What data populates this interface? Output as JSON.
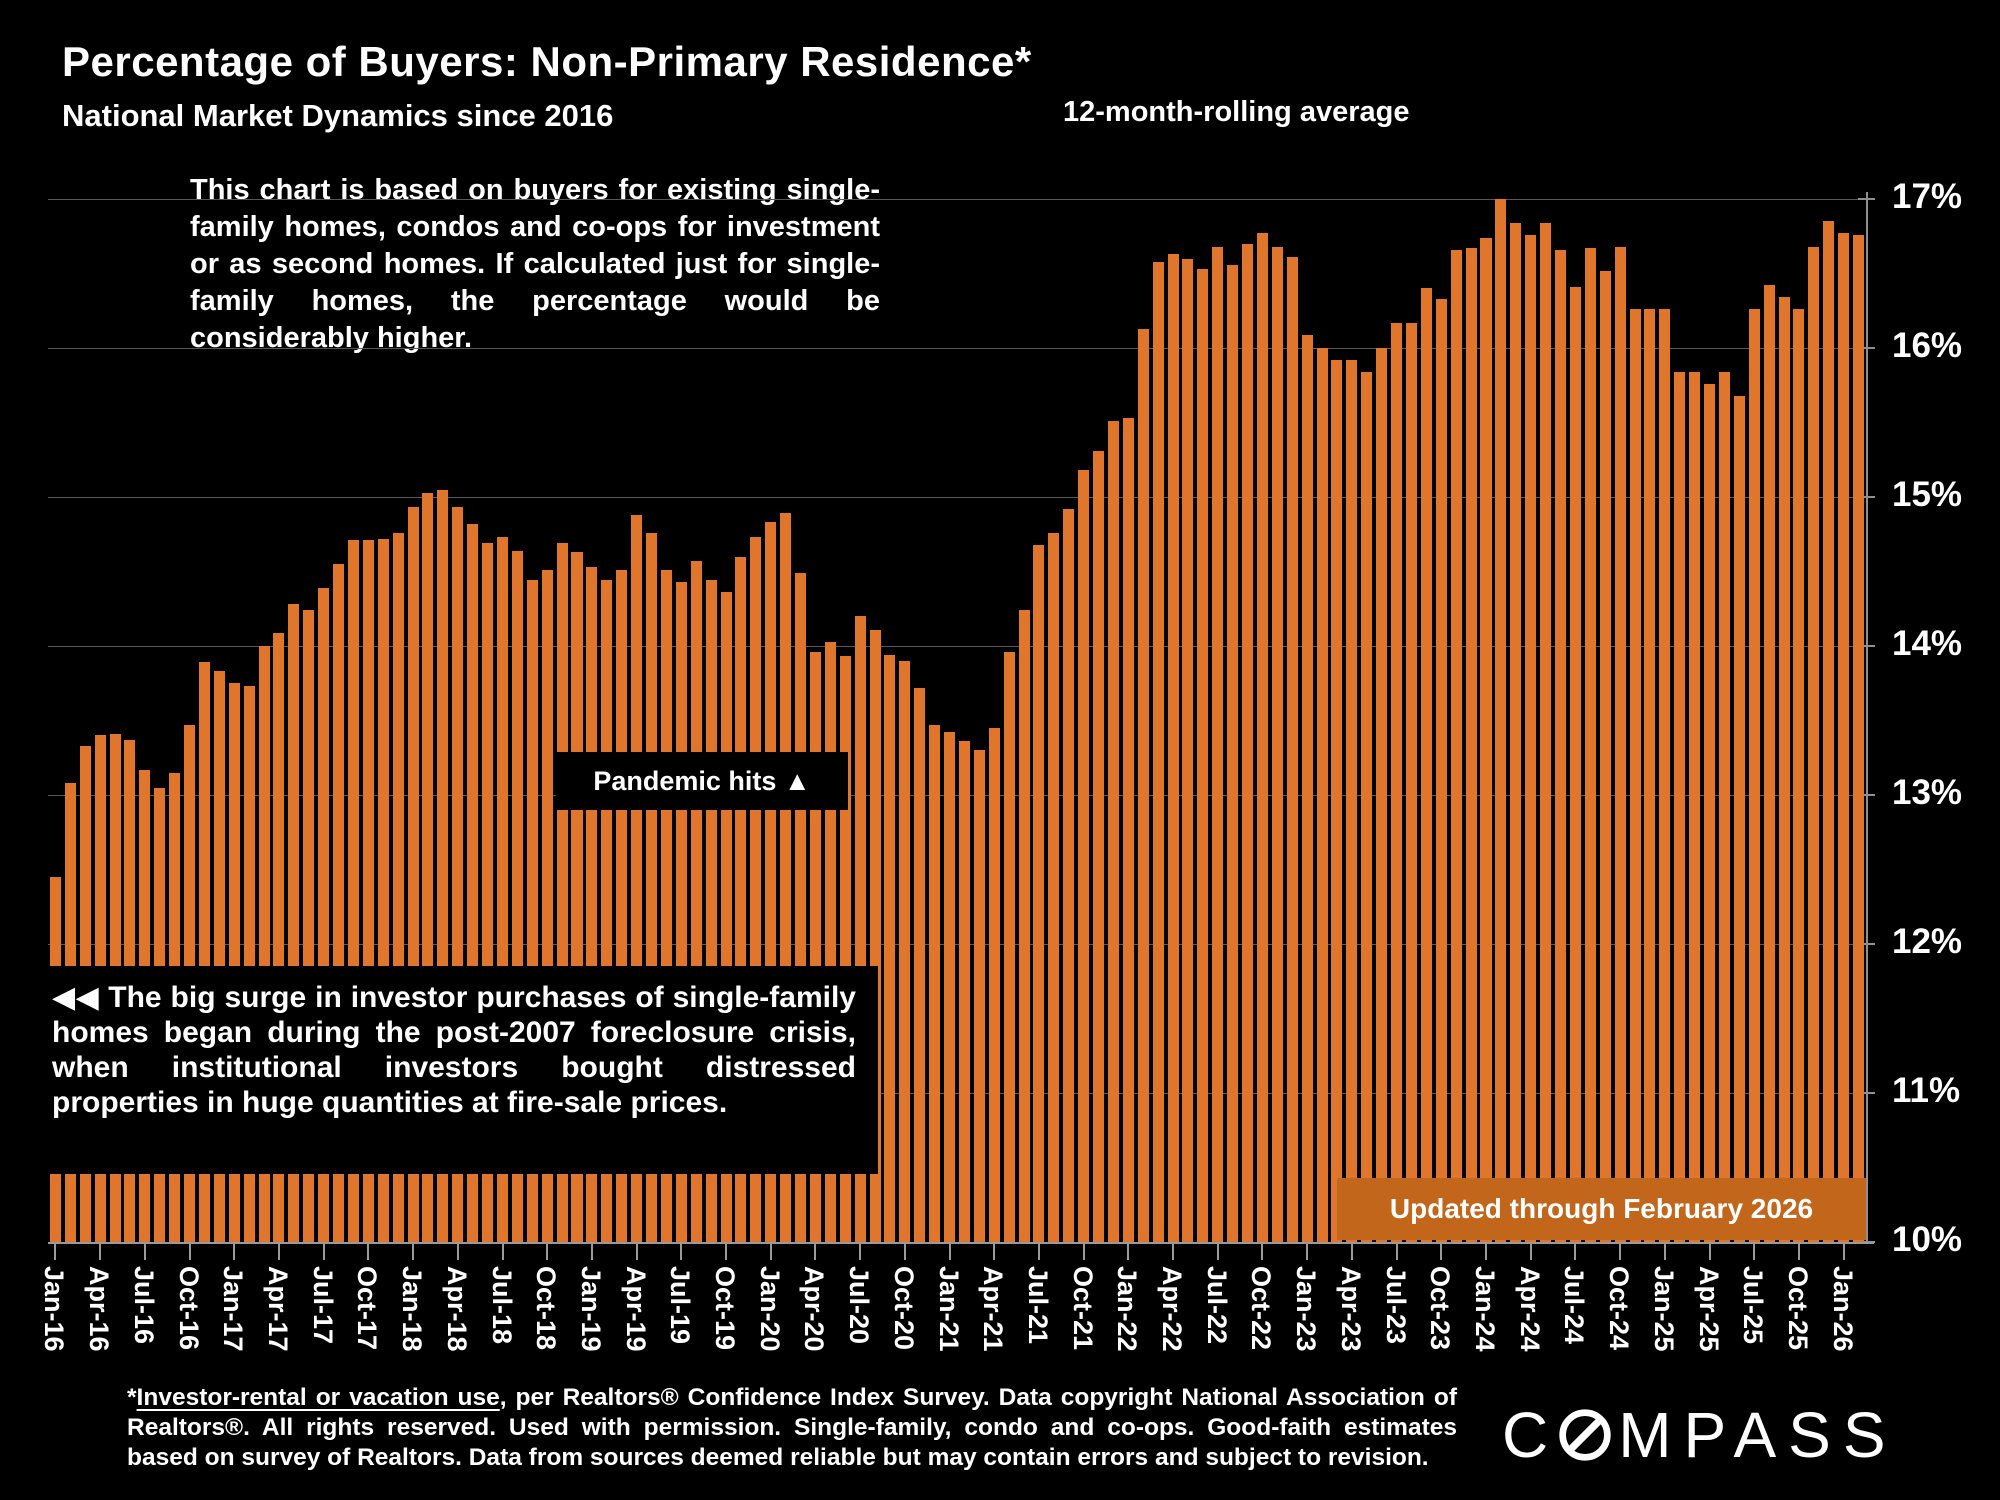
{
  "header": {
    "title": "Percentage of Buyers: Non-Primary Residence*",
    "subtitle": "National Market Dynamics since 2016",
    "rolling_label": "12-month-rolling average"
  },
  "annotations": {
    "methodology": "This chart is based on buyers for existing single-family homes, condos and co-ops for investment or as second homes. If calculated just for single-family homes, the percentage would be considerably higher.",
    "pandemic": "Pandemic hits ▲",
    "surge": "◀◀  The big surge in investor purchases of single-family homes began during the post-2007 foreclosure crisis, when institutional investors bought distressed properties in huge quantities at fire-sale prices.",
    "updated_badge": "Updated through February 2026"
  },
  "footnote": {
    "star": "*",
    "underlined": "Investor-rental or vacation use",
    "rest": ", per Realtors® Confidence Index Survey. Data copyright National Association of Realtors®. All rights reserved. Used with permission. Single-family, condo and co-ops. Good-faith estimates based on survey of Realtors. Data from sources deemed reliable but may contain errors and subject to revision."
  },
  "logo": {
    "prefix": "C",
    "suffix": "MPASS",
    "full": "COMPASS"
  },
  "colors": {
    "background": "#000000",
    "bar": "#E0762B",
    "badge": "#C2661C",
    "grid": "#585858",
    "axis": "#9A9A9A",
    "text": "#FFFFFF"
  },
  "y_axis": {
    "labels": [
      "17%",
      "16%",
      "15%",
      "14%",
      "13%",
      "12%",
      "11%",
      "10%"
    ],
    "max": 17,
    "min": 10
  },
  "chart_data": {
    "type": "bar",
    "title": "Percentage of Buyers: Non-Primary Residence*",
    "subtitle": "National Market Dynamics since 2016",
    "series_note": "12-month-rolling average, % of buyers purchasing non-primary residences",
    "xlabel": "",
    "ylabel": "",
    "ylim": [
      10,
      17
    ],
    "grid": true,
    "legend_position": "none",
    "categories": [
      "Jan-16",
      "Feb-16",
      "Mar-16",
      "Apr-16",
      "May-16",
      "Jun-16",
      "Jul-16",
      "Aug-16",
      "Sep-16",
      "Oct-16",
      "Nov-16",
      "Dec-16",
      "Jan-17",
      "Feb-17",
      "Mar-17",
      "Apr-17",
      "May-17",
      "Jun-17",
      "Jul-17",
      "Aug-17",
      "Sep-17",
      "Oct-17",
      "Nov-17",
      "Dec-17",
      "Jan-18",
      "Feb-18",
      "Mar-18",
      "Apr-18",
      "May-18",
      "Jun-18",
      "Jul-18",
      "Aug-18",
      "Sep-18",
      "Oct-18",
      "Nov-18",
      "Dec-18",
      "Jan-19",
      "Feb-19",
      "Mar-19",
      "Apr-19",
      "May-19",
      "Jun-19",
      "Jul-19",
      "Aug-19",
      "Sep-19",
      "Oct-19",
      "Nov-19",
      "Dec-19",
      "Jan-20",
      "Feb-20",
      "Mar-20",
      "Apr-20",
      "May-20",
      "Jun-20",
      "Jul-20",
      "Aug-20",
      "Sep-20",
      "Oct-20",
      "Nov-20",
      "Dec-20",
      "Jan-21",
      "Feb-21",
      "Mar-21",
      "Apr-21",
      "May-21",
      "Jun-21",
      "Jul-21",
      "Aug-21",
      "Sep-21",
      "Oct-21",
      "Nov-21",
      "Dec-21",
      "Jan-22",
      "Feb-22",
      "Mar-22",
      "Apr-22",
      "May-22",
      "Jun-22",
      "Jul-22",
      "Aug-22",
      "Sep-22",
      "Oct-22",
      "Nov-22",
      "Dec-22",
      "Jan-23",
      "Feb-23",
      "Mar-23",
      "Apr-23",
      "May-23",
      "Jun-23",
      "Jul-23",
      "Aug-23",
      "Sep-23",
      "Oct-23",
      "Nov-23",
      "Dec-23",
      "Jan-24",
      "Feb-24",
      "Mar-24",
      "Apr-24",
      "May-24",
      "Jun-24",
      "Jul-24",
      "Aug-24",
      "Sep-24",
      "Oct-24",
      "Nov-24",
      "Dec-24",
      "Jan-25",
      "Feb-25",
      "Mar-25",
      "Apr-25",
      "May-25",
      "Jun-25",
      "Jul-25",
      "Aug-25",
      "Sep-25",
      "Oct-25",
      "Nov-25",
      "Dec-25",
      "Jan-26",
      "Feb-26"
    ],
    "values": [
      12.45,
      13.08,
      13.33,
      13.4,
      13.41,
      13.37,
      13.17,
      13.05,
      13.15,
      13.47,
      13.89,
      13.83,
      13.75,
      13.73,
      14.0,
      14.09,
      14.28,
      14.24,
      14.39,
      14.55,
      14.71,
      14.71,
      14.72,
      14.76,
      14.93,
      15.03,
      15.05,
      14.93,
      14.82,
      14.69,
      14.73,
      14.64,
      14.44,
      14.51,
      14.69,
      14.63,
      14.53,
      14.44,
      14.51,
      14.88,
      14.76,
      14.51,
      14.43,
      14.57,
      14.44,
      14.36,
      14.6,
      14.73,
      14.83,
      14.89,
      14.49,
      13.96,
      14.03,
      13.93,
      14.2,
      14.11,
      13.94,
      13.9,
      13.72,
      13.47,
      13.42,
      13.36,
      13.3,
      13.45,
      13.96,
      14.24,
      14.68,
      14.76,
      14.92,
      15.18,
      15.31,
      15.51,
      15.53,
      16.13,
      16.58,
      16.63,
      16.6,
      16.53,
      16.68,
      16.56,
      16.7,
      16.77,
      16.68,
      16.61,
      16.09,
      16.0,
      15.92,
      15.92,
      15.84,
      16.0,
      16.17,
      16.17,
      16.4,
      16.33,
      16.66,
      16.67,
      16.74,
      17.0,
      16.84,
      16.76,
      16.84,
      16.66,
      16.41,
      16.67,
      16.52,
      16.68,
      16.26,
      16.26,
      16.26,
      15.84,
      15.84,
      15.76,
      15.84,
      15.68,
      16.26,
      16.42,
      16.34,
      16.26,
      16.68,
      16.85,
      16.77,
      16.76
    ],
    "x_tick_every": 3
  }
}
